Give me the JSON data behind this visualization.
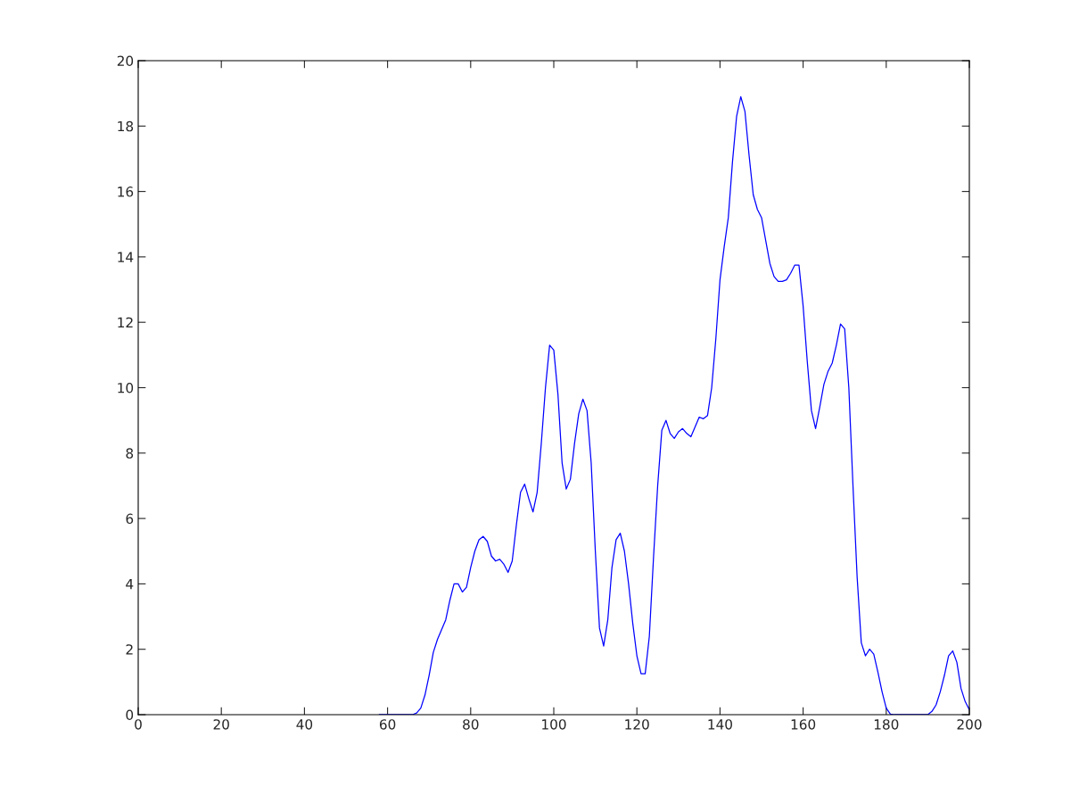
{
  "chart_data": {
    "type": "line",
    "xlim": [
      0,
      200
    ],
    "ylim": [
      0,
      20
    ],
    "xticks": [
      0,
      20,
      40,
      60,
      80,
      100,
      120,
      140,
      160,
      180,
      200
    ],
    "yticks": [
      0,
      2,
      4,
      6,
      8,
      10,
      12,
      14,
      16,
      18,
      20
    ],
    "grid": false,
    "marker": "none",
    "line_style": "solid",
    "series": [
      {
        "color": "#0000ff",
        "x": [
          58,
          66,
          67,
          68,
          69,
          70,
          71,
          72,
          73,
          74,
          75,
          76,
          77,
          78,
          79,
          80,
          81,
          82,
          83,
          84,
          85,
          86,
          87,
          88,
          89,
          90,
          91,
          92,
          93,
          94,
          95,
          96,
          97,
          98,
          99,
          100,
          101,
          102,
          103,
          104,
          105,
          106,
          107,
          108,
          109,
          110,
          111,
          112,
          113,
          114,
          115,
          116,
          117,
          118,
          119,
          120,
          121,
          122,
          123,
          124,
          125,
          126,
          127,
          128,
          129,
          130,
          131,
          132,
          133,
          134,
          135,
          136,
          137,
          138,
          139,
          140,
          141,
          142,
          143,
          144,
          145,
          146,
          147,
          148,
          149,
          150,
          151,
          152,
          153,
          154,
          155,
          156,
          157,
          158,
          159,
          160,
          161,
          162,
          163,
          164,
          165,
          166,
          167,
          168,
          169,
          170,
          171,
          172,
          173,
          174,
          175,
          176,
          177,
          178,
          179,
          180,
          181,
          182,
          190,
          191,
          192,
          193,
          194,
          195,
          196,
          197,
          198,
          199,
          200
        ],
        "values": [
          0,
          0,
          0.05,
          0.2,
          0.6,
          1.2,
          1.9,
          2.3,
          2.6,
          2.9,
          3.5,
          4.0,
          4.0,
          3.75,
          3.9,
          4.5,
          5.0,
          5.35,
          5.45,
          5.3,
          4.85,
          4.7,
          4.75,
          4.6,
          4.35,
          4.7,
          5.8,
          6.8,
          7.05,
          6.6,
          6.2,
          6.8,
          8.3,
          10.0,
          11.3,
          11.15,
          9.8,
          7.7,
          6.9,
          7.2,
          8.3,
          9.2,
          9.65,
          9.3,
          7.7,
          5.0,
          2.65,
          2.1,
          2.9,
          4.5,
          5.35,
          5.55,
          5.0,
          4.0,
          2.8,
          1.8,
          1.25,
          1.25,
          2.4,
          4.8,
          7.0,
          8.7,
          9.0,
          8.6,
          8.45,
          8.65,
          8.75,
          8.6,
          8.5,
          8.8,
          9.1,
          9.05,
          9.15,
          10.0,
          11.5,
          13.3,
          14.3,
          15.2,
          16.9,
          18.3,
          18.9,
          18.45,
          17.1,
          15.9,
          15.45,
          15.2,
          14.5,
          13.8,
          13.4,
          13.25,
          13.25,
          13.3,
          13.5,
          13.75,
          13.75,
          12.5,
          10.8,
          9.3,
          8.75,
          9.4,
          10.1,
          10.5,
          10.75,
          11.3,
          11.95,
          11.8,
          10.0,
          7.0,
          4.2,
          2.2,
          1.8,
          2.0,
          1.85,
          1.3,
          0.7,
          0.2,
          0.02,
          0,
          0,
          0.1,
          0.3,
          0.7,
          1.2,
          1.8,
          1.95,
          1.6,
          0.8,
          0.4,
          0.15
        ]
      }
    ]
  }
}
